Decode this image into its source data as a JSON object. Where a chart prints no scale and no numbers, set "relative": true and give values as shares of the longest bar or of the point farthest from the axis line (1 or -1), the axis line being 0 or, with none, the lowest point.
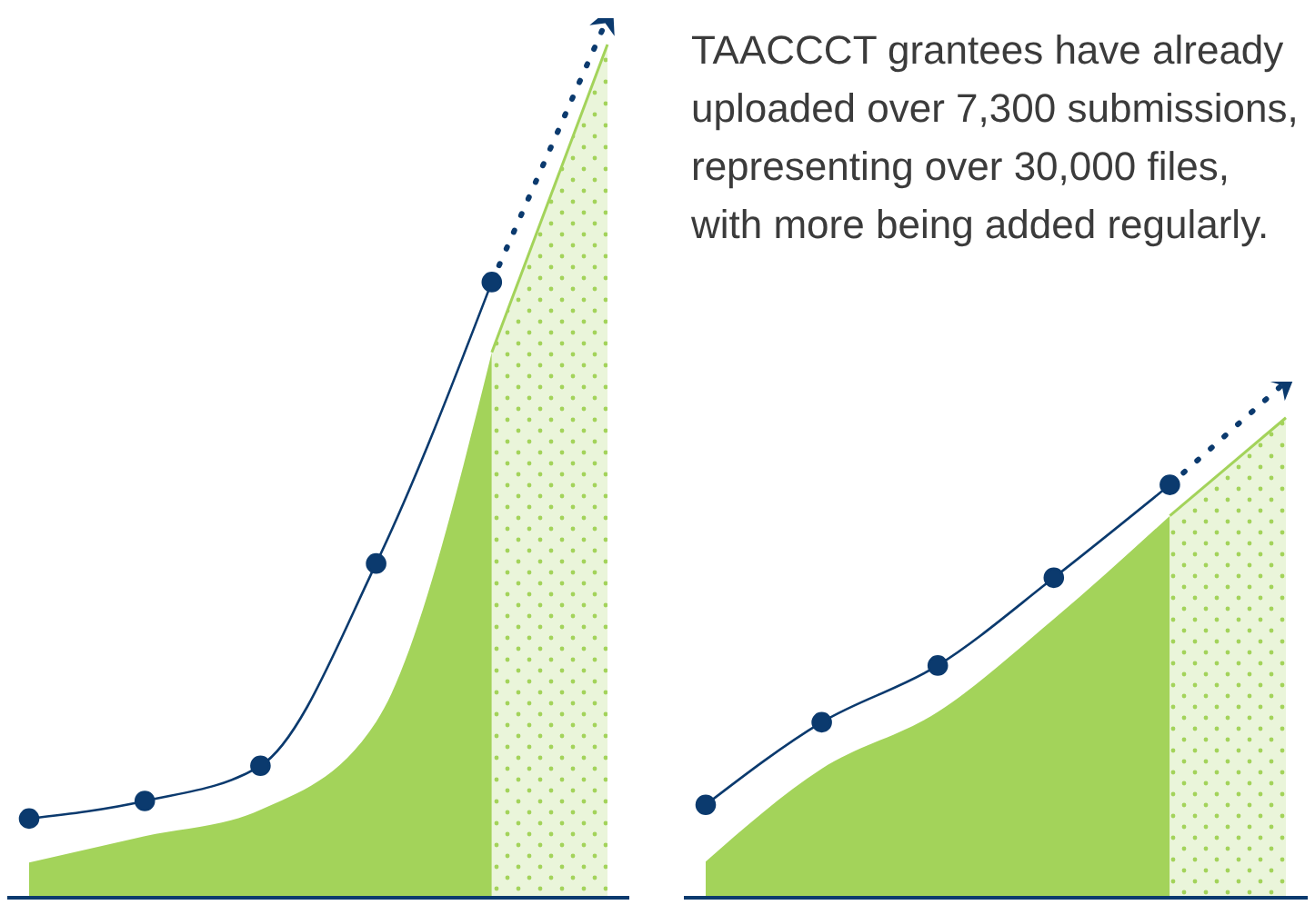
{
  "chart_data": [
    {
      "type": "line",
      "relative": true,
      "categories": [
        null,
        null,
        null,
        null,
        null,
        null
      ],
      "legend": false,
      "grid": false,
      "series": [
        {
          "type": "area",
          "color": "#a3d35a",
          "values": [
            0.04,
            0.07,
            0.1,
            0.2,
            0.62,
            null
          ]
        },
        {
          "type": "area",
          "color": "#eaf5da",
          "values": [
            null,
            null,
            null,
            null,
            0.62,
            0.97
          ]
        },
        {
          "color": "#0b3a6e",
          "marker": "circle",
          "line_style": "solid",
          "values": [
            0.09,
            0.11,
            0.15,
            0.38,
            0.7,
            null
          ]
        },
        {
          "color": "#0b3a6e",
          "marker": "none",
          "line_style": "dotted",
          "values": [
            null,
            null,
            null,
            null,
            0.7,
            1.0
          ]
        }
      ]
    },
    {
      "type": "line",
      "relative": true,
      "categories": [
        null,
        null,
        null,
        null,
        null,
        null
      ],
      "legend": false,
      "grid": false,
      "annotations": [
        "TAACCCT grantees have already uploaded over 7,300 submissions, representing over 30,000 files, with more being added regularly."
      ],
      "series": [
        {
          "type": "area",
          "color": "#a3d35a",
          "values": [
            0.07,
            0.25,
            0.36,
            0.54,
            0.74,
            null
          ]
        },
        {
          "type": "area",
          "color": "#eaf5da",
          "values": [
            null,
            null,
            null,
            null,
            0.74,
            0.93
          ]
        },
        {
          "color": "#0b3a6e",
          "marker": "circle",
          "line_style": "solid",
          "values": [
            0.18,
            0.34,
            0.45,
            0.62,
            0.8,
            null
          ]
        },
        {
          "color": "#0b3a6e",
          "marker": "none",
          "line_style": "dotted",
          "values": [
            null,
            null,
            null,
            null,
            0.8,
            1.0
          ]
        }
      ]
    }
  ]
}
